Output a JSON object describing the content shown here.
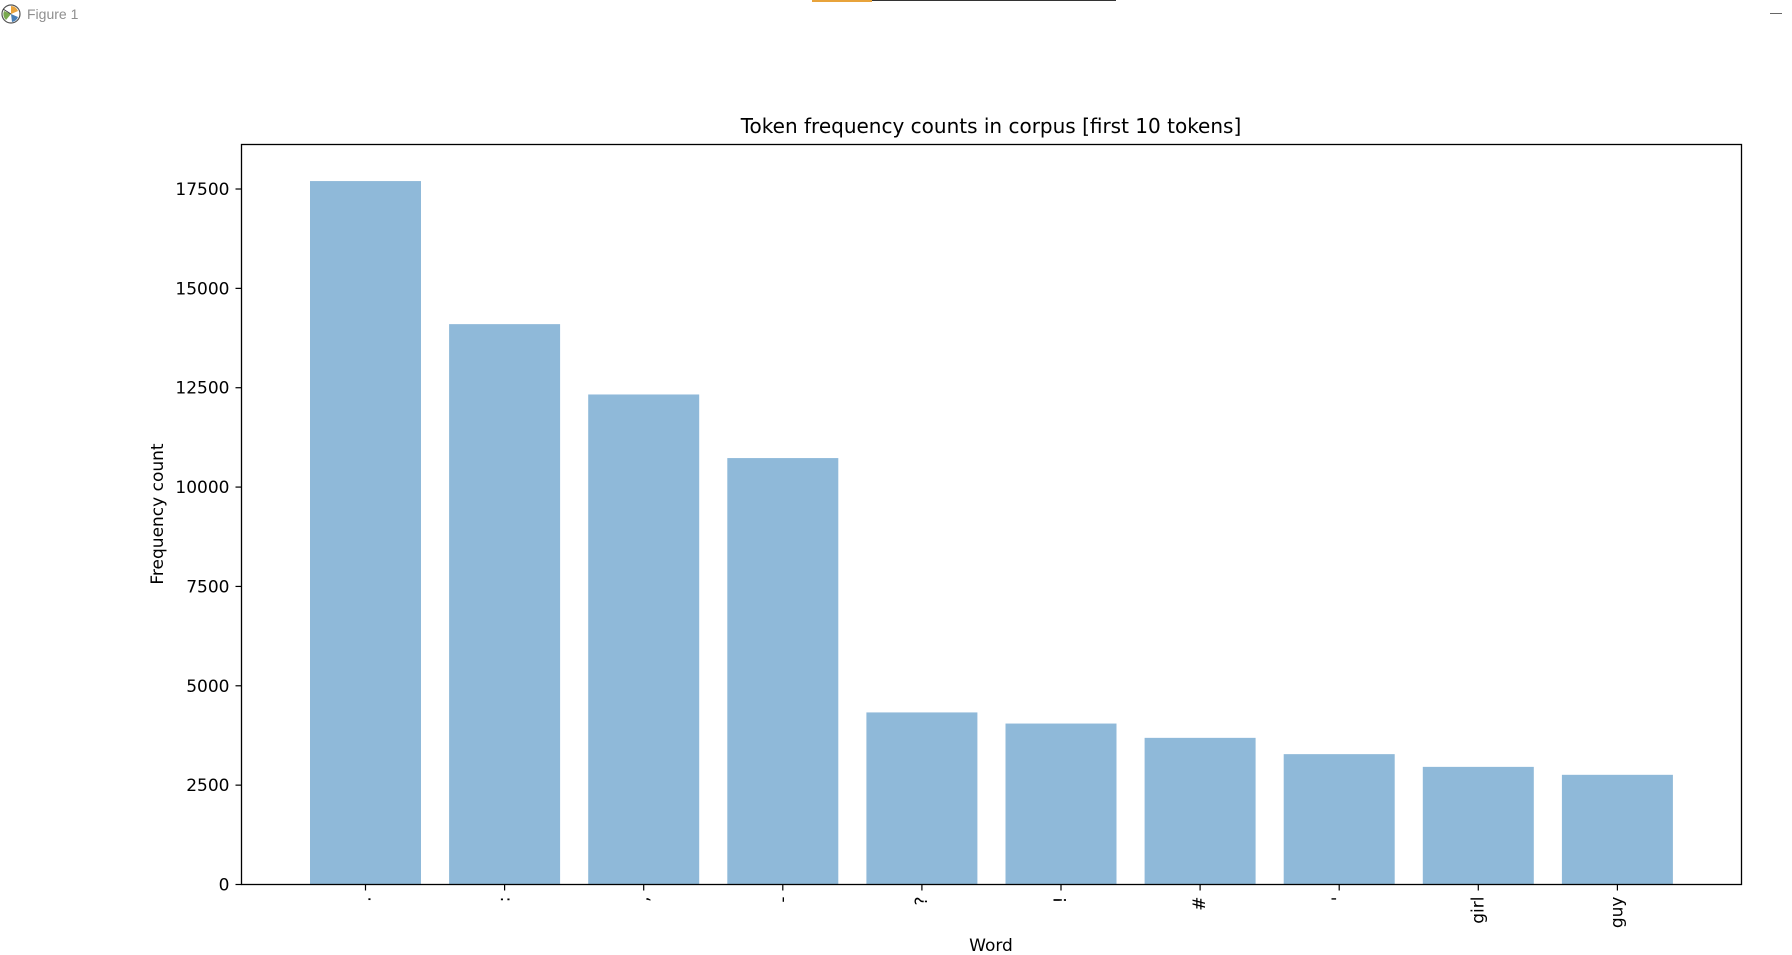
{
  "window": {
    "title": "Figure 1",
    "icon": "matplotlib-figure-icon"
  },
  "chart_data": {
    "type": "bar",
    "title": "Token frequency counts in corpus [first 10 tokens]",
    "xlabel": "Word",
    "ylabel": "Frequency count",
    "categories": [
      ".",
      ":",
      ",",
      "-",
      "?",
      "!",
      "#",
      "'",
      "girl",
      "guy"
    ],
    "values": [
      17700,
      14100,
      12330,
      10730,
      4330,
      4050,
      3690,
      3280,
      2960,
      2760
    ],
    "yticks": [
      0,
      2500,
      5000,
      7500,
      10000,
      12500,
      15000,
      17500
    ],
    "ylim": [
      0,
      18620
    ],
    "grid": false,
    "bar_color": "#8fb9d9",
    "tick_label_rotation": 90
  }
}
